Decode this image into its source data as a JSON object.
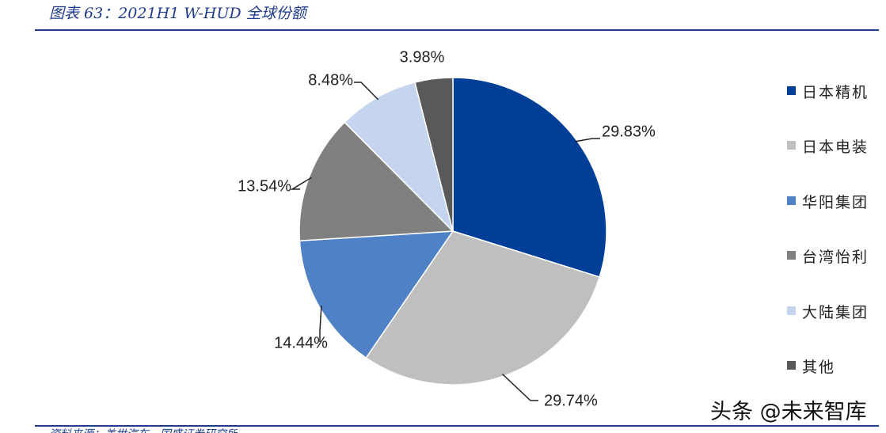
{
  "figure": {
    "title": "图表 63：2021H1 W-HUD 全球份额",
    "source": "资料来源：盖世汽车，国盛证券研究所"
  },
  "watermark": "头条 @未来智库",
  "chart_data": {
    "type": "pie",
    "title": "",
    "legend_position": "right",
    "slices": [
      {
        "name": "日本精机",
        "value": 29.83,
        "label": "29.83%",
        "color": "#003f98"
      },
      {
        "name": "日本电装",
        "value": 29.74,
        "label": "29.74%",
        "color": "#bfbfbf"
      },
      {
        "name": "华阳集团",
        "value": 14.44,
        "label": "14.44%",
        "color": "#4f81c7"
      },
      {
        "name": "台湾怡利",
        "value": 13.54,
        "label": "13.54%",
        "color": "#808080"
      },
      {
        "name": "大陆集团",
        "value": 8.48,
        "label": "8.48%",
        "color": "#c5d5ee"
      },
      {
        "name": "其他",
        "value": 3.98,
        "label": "3.98%",
        "color": "#595959"
      }
    ]
  }
}
